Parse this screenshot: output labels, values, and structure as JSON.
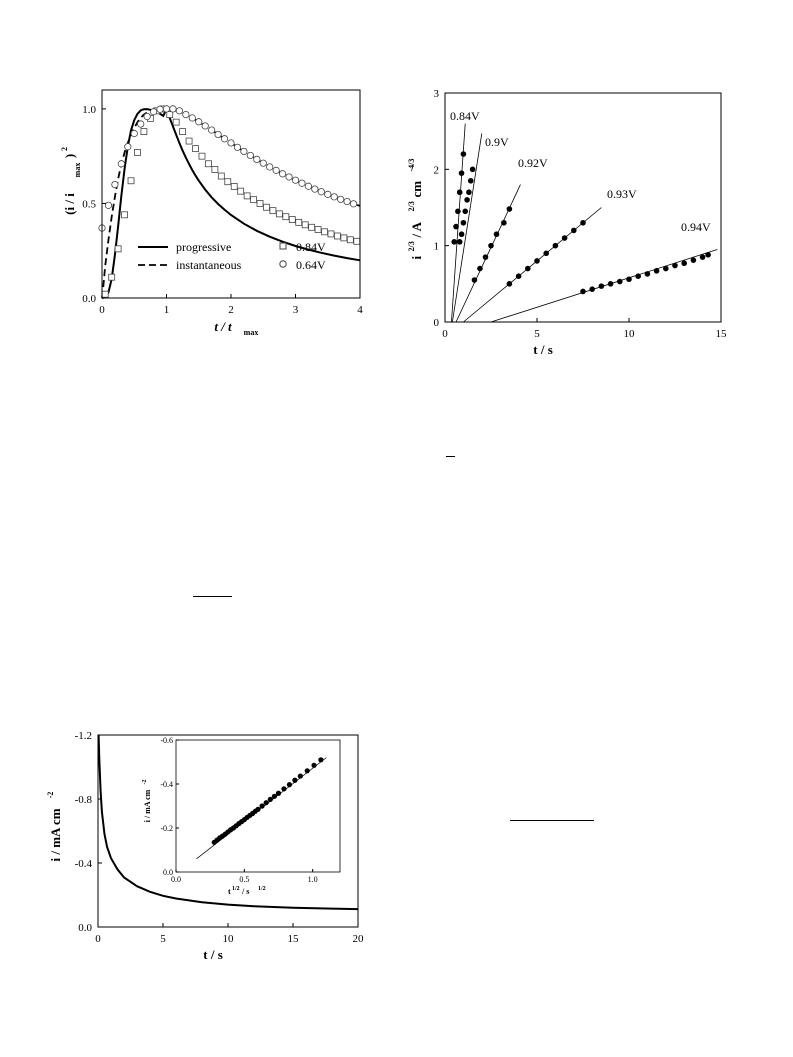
{
  "chart_data": [
    {
      "type": "line",
      "xlabel": {
        "main": "t / t",
        "sub": "max"
      },
      "ylabel": {
        "pre": "(i / i",
        "sub": "max",
        "post": ")",
        "sup": "2"
      },
      "xlim": [
        0,
        4
      ],
      "ylim": [
        0,
        1.1
      ],
      "xticks": [
        0,
        1,
        2,
        3,
        4
      ],
      "yticks": [
        0.0,
        0.5,
        1.0
      ],
      "xtick_labels": [
        "0",
        "1",
        "2",
        "3",
        "4"
      ],
      "ytick_labels": [
        "0.0",
        "0.5",
        "1.0"
      ],
      "legend": [
        {
          "label": "progressive",
          "style": "solid"
        },
        {
          "label": "instantaneous",
          "style": "dashed"
        },
        {
          "label": "0.84V",
          "marker": "square"
        },
        {
          "label": "0.64V",
          "marker": "circle"
        }
      ],
      "series": [
        {
          "name": "progressive",
          "style": "solid",
          "x": [
            0,
            0.05,
            0.1,
            0.15,
            0.2,
            0.25,
            0.3,
            0.35,
            0.4,
            0.45,
            0.5,
            0.55,
            0.6,
            0.65,
            0.7,
            0.75,
            0.8,
            0.85,
            0.9,
            0.95,
            1.0,
            1.05,
            1.1,
            1.15,
            1.2,
            1.25,
            1.3,
            1.35,
            1.4,
            1.45,
            1.5,
            1.6,
            1.7,
            1.8,
            1.9,
            2.0,
            2.2,
            2.4,
            2.6,
            2.8,
            3.0,
            3.2,
            3.4,
            3.6,
            3.8,
            4.0
          ],
          "y": [
            0,
            0.0039,
            0.0307,
            0.1008,
            0.2272,
            0.3782,
            0.5385,
            0.6844,
            0.8002,
            0.8862,
            0.9412,
            0.9743,
            0.9919,
            0.9984,
            0.9991,
            0.9954,
            0.9897,
            0.9843,
            0.9737,
            0.963,
            1.0,
            0.952,
            0.9069,
            0.8625,
            0.8198,
            0.7794,
            0.7422,
            0.7079,
            0.6764,
            0.6472,
            0.6206,
            0.5732,
            0.5324,
            0.4971,
            0.4662,
            0.439,
            0.3928,
            0.3552,
            0.324,
            0.2977,
            0.2751,
            0.2557,
            0.2388,
            0.2241,
            0.2111,
            0.1995
          ]
        },
        {
          "name": "instantaneous",
          "style": "dashed",
          "x": [
            0,
            0.02,
            0.05,
            0.1,
            0.15,
            0.2,
            0.25,
            0.3,
            0.35,
            0.4,
            0.45,
            0.5,
            0.55,
            0.6,
            0.65,
            0.7,
            0.75,
            0.8,
            0.85,
            0.9,
            0.95,
            1.0,
            1.1,
            1.2,
            1.3,
            1.4,
            1.5,
            1.6,
            1.7,
            1.8,
            1.9,
            2.0,
            2.2,
            2.4,
            2.6,
            2.8,
            3.0,
            3.2,
            3.4,
            3.6,
            3.8,
            4.0
          ],
          "y": [
            0,
            0.06,
            0.17,
            0.31,
            0.43,
            0.535,
            0.63,
            0.705,
            0.77,
            0.82,
            0.865,
            0.9,
            0.93,
            0.953,
            0.97,
            0.982,
            0.991,
            0.996,
            0.999,
            1.0,
            1.0,
            1.0,
            0.995,
            0.985,
            0.97,
            0.952,
            0.932,
            0.91,
            0.888,
            0.865,
            0.842,
            0.82,
            0.775,
            0.733,
            0.693,
            0.657,
            0.623,
            0.591,
            0.562,
            0.535,
            0.51,
            0.487
          ]
        },
        {
          "name": "0.84V",
          "marker": "square",
          "x": [
            0.05,
            0.15,
            0.25,
            0.35,
            0.45,
            0.55,
            0.65,
            0.75,
            0.85,
            0.95,
            1.05,
            1.15,
            1.25,
            1.35,
            1.45,
            1.55,
            1.65,
            1.75,
            1.85,
            1.95,
            2.05,
            2.15,
            2.25,
            2.35,
            2.45,
            2.55,
            2.65,
            2.75,
            2.85,
            2.95,
            3.05,
            3.15,
            3.25,
            3.35,
            3.45,
            3.55,
            3.65,
            3.75,
            3.85,
            3.95
          ],
          "y": [
            0.02,
            0.11,
            0.26,
            0.44,
            0.62,
            0.77,
            0.88,
            0.95,
            0.99,
            1.0,
            0.97,
            0.93,
            0.88,
            0.83,
            0.79,
            0.75,
            0.71,
            0.68,
            0.645,
            0.615,
            0.59,
            0.565,
            0.54,
            0.52,
            0.5,
            0.48,
            0.462,
            0.445,
            0.43,
            0.415,
            0.4,
            0.387,
            0.374,
            0.362,
            0.35,
            0.339,
            0.328,
            0.318,
            0.308,
            0.3
          ]
        },
        {
          "name": "0.64V",
          "marker": "circle",
          "x": [
            0,
            0.1,
            0.2,
            0.3,
            0.4,
            0.5,
            0.6,
            0.7,
            0.8,
            0.9,
            1.0,
            1.1,
            1.2,
            1.3,
            1.4,
            1.5,
            1.6,
            1.7,
            1.8,
            1.9,
            2.0,
            2.1,
            2.2,
            2.3,
            2.4,
            2.5,
            2.6,
            2.7,
            2.8,
            2.9,
            3.0,
            3.1,
            3.2,
            3.3,
            3.4,
            3.5,
            3.6,
            3.7,
            3.8,
            3.9
          ],
          "y": [
            0.37,
            0.49,
            0.6,
            0.71,
            0.8,
            0.87,
            0.92,
            0.96,
            0.985,
            0.998,
            1.0,
            1.0,
            0.99,
            0.97,
            0.952,
            0.932,
            0.91,
            0.888,
            0.865,
            0.842,
            0.82,
            0.797,
            0.775,
            0.754,
            0.733,
            0.713,
            0.693,
            0.675,
            0.657,
            0.64,
            0.623,
            0.607,
            0.591,
            0.576,
            0.562,
            0.548,
            0.535,
            0.522,
            0.51,
            0.498
          ]
        }
      ]
    },
    {
      "type": "scatter",
      "xlabel": "t / s",
      "ylabel": {
        "pre": "i",
        "sup1": "2/3",
        "mid": " / A",
        "sup2": "2/3",
        "post": " cm",
        "sup3": "-4/3"
      },
      "xlim": [
        0,
        15
      ],
      "ylim": [
        0,
        3
      ],
      "xticks": [
        0,
        5,
        10,
        15
      ],
      "yticks": [
        0,
        1,
        2,
        3
      ],
      "xtick_labels": [
        "0",
        "5",
        "10",
        "15"
      ],
      "ytick_labels": [
        "0",
        "1",
        "2",
        "3"
      ],
      "series": [
        {
          "name": "0.84V",
          "fit": {
            "x0": 0.35,
            "x1": 1.1,
            "y1": 2.6
          },
          "x": [
            0.5,
            0.6,
            0.7,
            0.8,
            0.9,
            1.0
          ],
          "y": [
            1.05,
            1.25,
            1.45,
            1.7,
            1.95,
            2.2
          ]
        },
        {
          "name": "0.9V",
          "fit": {
            "x0": 0.4,
            "x1": 2.0,
            "y1": 2.47
          },
          "x": [
            0.8,
            0.9,
            1.0,
            1.1,
            1.2,
            1.3,
            1.4,
            1.5
          ],
          "y": [
            1.05,
            1.15,
            1.3,
            1.45,
            1.6,
            1.7,
            1.85,
            2.0
          ]
        },
        {
          "name": "0.92V",
          "fit": {
            "x0": 0.6,
            "x1": 4.1,
            "y1": 1.8
          },
          "x": [
            1.6,
            1.9,
            2.2,
            2.5,
            2.8,
            3.2,
            3.5
          ],
          "y": [
            0.55,
            0.7,
            0.85,
            1.0,
            1.15,
            1.3,
            1.48
          ]
        },
        {
          "name": "0.93V",
          "fit": {
            "x0": 1.0,
            "x1": 8.5,
            "y1": 1.5
          },
          "x": [
            3.5,
            4.0,
            4.5,
            5.0,
            5.5,
            6.0,
            6.5,
            7.0,
            7.5
          ],
          "y": [
            0.5,
            0.6,
            0.7,
            0.8,
            0.9,
            1.0,
            1.1,
            1.2,
            1.3
          ]
        },
        {
          "name": "0.94V",
          "fit": {
            "x0": 2.5,
            "x1": 14.8,
            "y1": 0.95
          },
          "x": [
            7.5,
            8.0,
            8.5,
            9.0,
            9.5,
            10.0,
            10.5,
            11.0,
            11.5,
            12.0,
            12.5,
            13.0,
            13.5,
            14.0,
            14.3
          ],
          "y": [
            0.4,
            0.43,
            0.47,
            0.5,
            0.53,
            0.56,
            0.6,
            0.63,
            0.67,
            0.7,
            0.74,
            0.77,
            0.81,
            0.85,
            0.88
          ]
        }
      ]
    },
    {
      "type": "line",
      "xlabel": "t / s",
      "ylabel": {
        "pre": "i / mA cm",
        "sup": "-2"
      },
      "xlim": [
        0,
        20
      ],
      "ylim": [
        0,
        -1.2
      ],
      "xticks": [
        0,
        5,
        10,
        15,
        20
      ],
      "yticks": [
        0.0,
        -0.4,
        -0.8,
        -1.2
      ],
      "xtick_labels": [
        "0",
        "5",
        "10",
        "15",
        "20"
      ],
      "ytick_labels": [
        "0.0",
        "-0.4",
        "-0.8",
        "-1.2"
      ],
      "series": [
        {
          "name": "",
          "x": [
            0.05,
            0.1,
            0.2,
            0.3,
            0.5,
            0.7,
            1.0,
            1.5,
            2.0,
            3.0,
            4.0,
            5.0,
            6.0,
            8.0,
            10.0,
            12.0,
            15.0,
            18.0,
            20.0
          ],
          "y": [
            -1.2,
            -1.05,
            -0.85,
            -0.72,
            -0.58,
            -0.5,
            -0.43,
            -0.36,
            -0.31,
            -0.255,
            -0.22,
            -0.195,
            -0.178,
            -0.155,
            -0.14,
            -0.13,
            -0.12,
            -0.115,
            -0.112
          ]
        }
      ],
      "inset": {
        "type": "scatter",
        "xlabel": {
          "pre": "t",
          "sup1": "1/2",
          "mid": " / s",
          "sup2": "1/2"
        },
        "ylabel": {
          "pre": "i / mA cm",
          "sup": "-2"
        },
        "xlim": [
          0,
          1.2
        ],
        "ylim": [
          0,
          -0.6
        ],
        "xticks": [
          0,
          0.5,
          1.0
        ],
        "yticks": [
          0.0,
          -0.2,
          -0.4,
          -0.6
        ],
        "xtick_labels": [
          "0.0",
          "0.5",
          "1.0"
        ],
        "ytick_labels": [
          "0.0",
          "-0.2",
          "-0.4",
          "-0.6"
        ],
        "fit": {
          "x0": 0.15,
          "y0": -0.06,
          "x1": 1.1,
          "y1": -0.52
        },
        "series": [
          {
            "name": "",
            "x": [
              0.28,
              0.3,
              0.32,
              0.34,
              0.36,
              0.38,
              0.4,
              0.42,
              0.44,
              0.46,
              0.48,
              0.5,
              0.52,
              0.54,
              0.56,
              0.58,
              0.6,
              0.63,
              0.66,
              0.69,
              0.72,
              0.75,
              0.79,
              0.83,
              0.87,
              0.91,
              0.96,
              1.01,
              1.06
            ],
            "y": [
              -0.135,
              -0.145,
              -0.155,
              -0.163,
              -0.172,
              -0.182,
              -0.192,
              -0.2,
              -0.21,
              -0.22,
              -0.229,
              -0.238,
              -0.248,
              -0.257,
              -0.266,
              -0.276,
              -0.285,
              -0.3,
              -0.315,
              -0.33,
              -0.344,
              -0.358,
              -0.378,
              -0.397,
              -0.417,
              -0.436,
              -0.46,
              -0.485,
              -0.51
            ]
          }
        ]
      }
    }
  ]
}
